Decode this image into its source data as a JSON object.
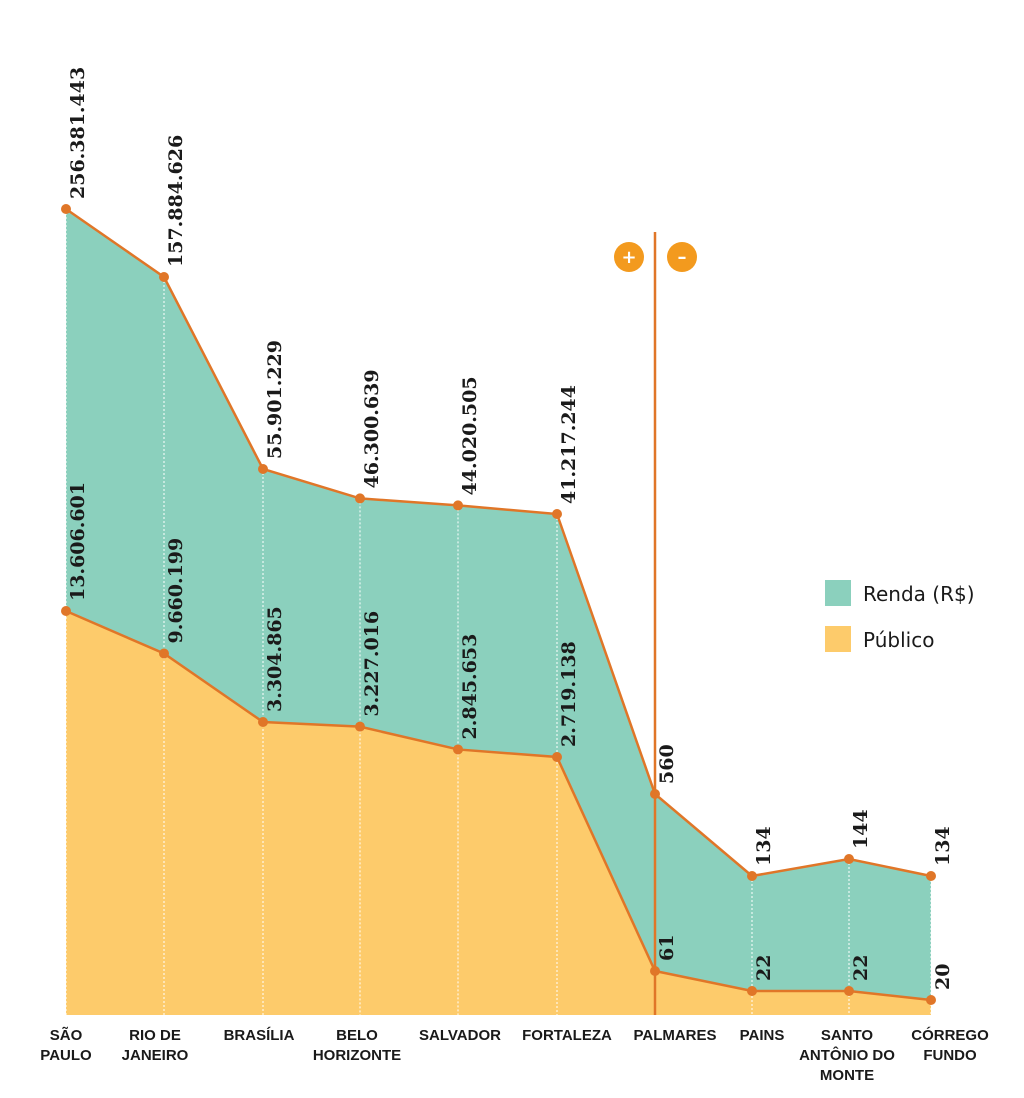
{
  "chart_data": {
    "type": "area",
    "categories": [
      [
        "SÃO",
        "PAULO"
      ],
      [
        "RIO DE",
        "JANEIRO"
      ],
      [
        "BRASÍLIA"
      ],
      [
        "BELO",
        "HORIZONTE"
      ],
      [
        "SALVADOR"
      ],
      [
        "FORTALEZA"
      ],
      [
        "PALMARES"
      ],
      [
        "PAINS"
      ],
      [
        "SANTO",
        "ANTÔNIO DO",
        "MONTE"
      ],
      [
        "CÓRREGO",
        "FUNDO"
      ]
    ],
    "series": [
      {
        "name": "Renda (R$)",
        "color": "#8bd0bd",
        "values": [
          256381443,
          157884626,
          55901229,
          46300639,
          44020505,
          41217244,
          560,
          134,
          144,
          134
        ],
        "labels": [
          "256.381.443",
          "157.884.626",
          "55.901.229",
          "46.300.639",
          "44.020.505",
          "41.217.244",
          "560",
          "134",
          "144",
          "134"
        ]
      },
      {
        "name": "Público",
        "color": "#fdcb6b",
        "values": [
          13606601,
          9660199,
          3304865,
          3227016,
          2845653,
          2719138,
          61,
          22,
          22,
          20
        ],
        "labels": [
          "13.606.601",
          "9.660.199",
          "3.304.865",
          "3.227.016",
          "2.845.653",
          "2.719.138",
          "61",
          "22",
          "22",
          "20"
        ]
      }
    ],
    "divider": {
      "after_category": "FORTALEZA",
      "left_symbol": "+",
      "right_symbol": "–"
    },
    "line_color": "#e07628",
    "legend_position": "right"
  }
}
